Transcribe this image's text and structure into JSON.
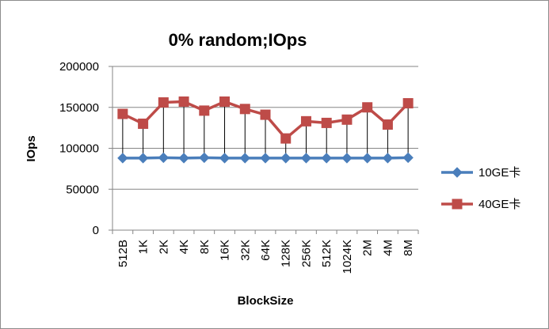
{
  "chart_data": {
    "type": "line",
    "title": "0% random;IOps",
    "xlabel": "BlockSize",
    "ylabel": "IOps",
    "categories": [
      "512B",
      "1K",
      "2K",
      "4K",
      "8K",
      "16K",
      "32K",
      "64K",
      "128K",
      "256K",
      "512K",
      "1024K",
      "2M",
      "4M",
      "8M"
    ],
    "yticks": [
      "0",
      "50000",
      "100000",
      "150000",
      "200000"
    ],
    "ylim": [
      0,
      200000
    ],
    "grid": true,
    "legend_position": "right",
    "high_low_lines": true,
    "series": [
      {
        "name": "10GE卡",
        "color": "#4a7ebb",
        "marker": "diamond",
        "values": [
          88000,
          88000,
          88500,
          88000,
          88500,
          88000,
          88000,
          88000,
          88000,
          88000,
          88000,
          88000,
          88000,
          88000,
          88500
        ]
      },
      {
        "name": "40GE卡",
        "color": "#be4b48",
        "marker": "square",
        "values": [
          142000,
          130000,
          156000,
          157000,
          146000,
          157000,
          148000,
          141000,
          112000,
          133000,
          131000,
          135000,
          150000,
          129000,
          155000
        ]
      }
    ]
  }
}
